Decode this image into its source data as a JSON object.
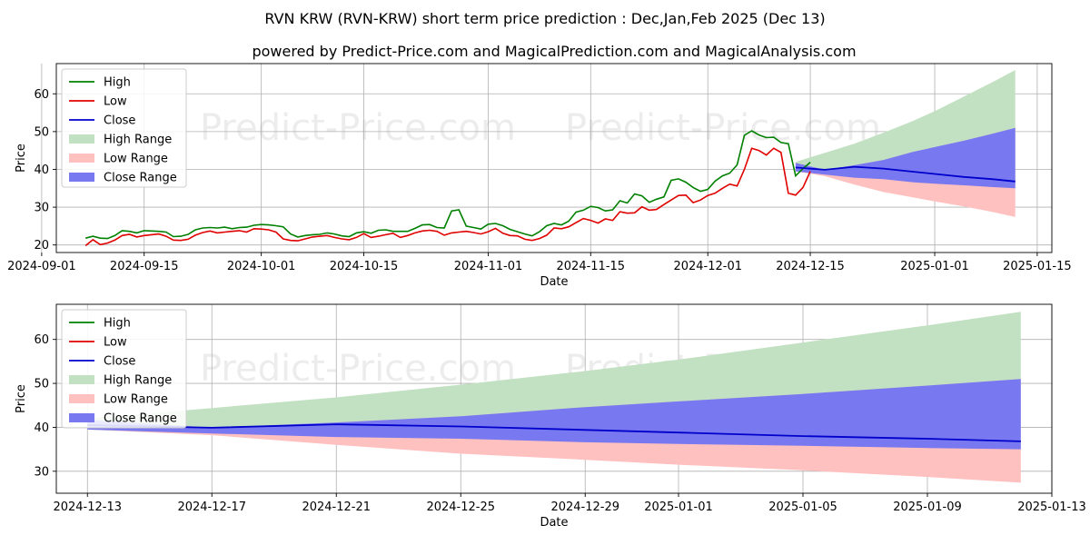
{
  "title": "RVN KRW (RVN-KRW) short term price prediction : Dec,Jan,Feb 2025 (Dec 13)",
  "subtitle": "powered by Predict-Price.com and MagicalPrediction.com and MagicalAnalysis.com",
  "watermark": "Predict-Price.com",
  "colors": {
    "high": "#008000",
    "low": "#e00000",
    "close": "#0000cc",
    "high_range": "#c2e0c2",
    "low_range": "#ffc0c0",
    "close_range": "#7878f0",
    "grid": "#b0b0b0"
  },
  "legend": [
    "High",
    "Low",
    "Close",
    "High Range",
    "Low Range",
    "Close Range"
  ],
  "chart_data": [
    {
      "type": "line",
      "name": "history-and-forecast",
      "xlabel": "Date",
      "ylabel": "Price",
      "xlim": [
        "2024-09-03",
        "2025-01-17"
      ],
      "ylim": [
        18,
        68
      ],
      "x_ticks": [
        "2024-09-01",
        "2024-09-15",
        "2024-10-01",
        "2024-10-15",
        "2024-11-01",
        "2024-11-15",
        "2024-12-01",
        "2024-12-15",
        "2025-01-01",
        "2025-01-15"
      ],
      "y_ticks": [
        20,
        30,
        40,
        50,
        60
      ],
      "legend_position": "top-left",
      "history": {
        "start": "2024-09-07",
        "high": [
          21.8,
          22.3,
          21.8,
          21.7,
          22.5,
          23.8,
          23.6,
          23.2,
          23.8,
          23.7,
          23.6,
          23.4,
          22.2,
          22.3,
          22.8,
          24.0,
          24.5,
          24.6,
          24.5,
          24.7,
          24.3,
          24.6,
          24.7,
          25.2,
          25.4,
          25.3,
          25.1,
          24.8,
          22.9,
          22.1,
          22.5,
          22.7,
          22.8,
          23.2,
          22.9,
          22.4,
          22.2,
          23.2,
          23.5,
          23.1,
          23.9,
          24.0,
          23.6,
          23.6,
          23.6,
          24.4,
          25.3,
          25.4,
          24.6,
          24.5,
          29.0,
          29.3,
          25.0,
          24.6,
          24.2,
          25.5,
          25.7,
          25.1,
          24.1,
          23.5,
          22.9,
          22.4,
          23.5,
          25.1,
          25.7,
          25.3,
          26.3,
          28.7,
          29.2,
          30.2,
          29.9,
          29.0,
          29.3,
          31.7,
          31.1,
          33.5,
          33.0,
          31.3,
          32.1,
          32.7,
          37.1,
          37.5,
          36.6,
          35.2,
          34.2,
          34.7,
          36.9,
          38.3,
          39.0,
          41.2,
          49.0,
          50.2,
          49.1,
          48.4,
          48.5,
          47.1,
          46.8,
          38.3,
          40.2,
          41.9
        ],
        "low": [
          19.8,
          21.4,
          20.1,
          20.5,
          21.3,
          22.5,
          22.8,
          22.1,
          22.5,
          22.7,
          22.9,
          22.3,
          21.3,
          21.2,
          21.5,
          22.6,
          23.3,
          23.7,
          23.2,
          23.4,
          23.6,
          23.8,
          23.4,
          24.3,
          24.2,
          24.0,
          23.4,
          21.6,
          21.2,
          21.1,
          21.6,
          22.1,
          22.3,
          22.5,
          22.0,
          21.6,
          21.4,
          22.0,
          23.0,
          22.0,
          22.3,
          22.7,
          23.1,
          22.0,
          22.5,
          23.2,
          23.7,
          23.9,
          23.6,
          22.6,
          23.2,
          23.4,
          23.6,
          23.3,
          22.9,
          23.5,
          24.4,
          23.1,
          22.5,
          22.4,
          21.5,
          21.2,
          21.7,
          22.6,
          24.5,
          24.3,
          24.8,
          25.9,
          27.0,
          26.5,
          25.8,
          26.9,
          26.5,
          28.8,
          28.4,
          28.5,
          30.1,
          29.2,
          29.4,
          30.7,
          31.9,
          33.1,
          33.2,
          31.2,
          31.9,
          33.1,
          33.7,
          35.0,
          36.1,
          35.6,
          40.0,
          45.6,
          45.0,
          43.8,
          45.6,
          44.5,
          33.7,
          33.2,
          35.2,
          39.5
        ]
      },
      "forecast": {
        "days": [
          "2024-12-13",
          "2024-12-17",
          "2024-12-21",
          "2024-12-25",
          "2024-12-29",
          "2025-01-01",
          "2025-01-05",
          "2025-01-09",
          "2025-01-12"
        ],
        "close": [
          40.5,
          39.9,
          40.7,
          40.2,
          39.4,
          38.8,
          38.0,
          37.4,
          36.8
        ],
        "high_upper": [
          42.0,
          44.4,
          46.8,
          49.7,
          52.8,
          55.4,
          59.3,
          63.2,
          66.3
        ],
        "close_upper": [
          41.7,
          39.9,
          41.1,
          42.5,
          44.6,
          45.9,
          47.6,
          49.5,
          51.0
        ],
        "close_lower": [
          39.5,
          38.6,
          37.8,
          37.4,
          36.6,
          36.2,
          35.8,
          35.3,
          35.0
        ],
        "low_lower": [
          39.5,
          38.2,
          36.0,
          34.0,
          32.6,
          31.5,
          30.2,
          28.7,
          27.4
        ]
      }
    },
    {
      "type": "area",
      "name": "forecast-zoom",
      "xlabel": "Date",
      "ylabel": "Price",
      "xlim": [
        "2024-12-12",
        "2025-01-13"
      ],
      "ylim": [
        25,
        68
      ],
      "x_ticks": [
        "2024-12-13",
        "2024-12-17",
        "2024-12-21",
        "2024-12-25",
        "2024-12-29",
        "2025-01-01",
        "2025-01-05",
        "2025-01-09",
        "2025-01-13"
      ],
      "y_ticks": [
        30,
        40,
        50,
        60
      ],
      "legend_position": "top-left"
    }
  ]
}
